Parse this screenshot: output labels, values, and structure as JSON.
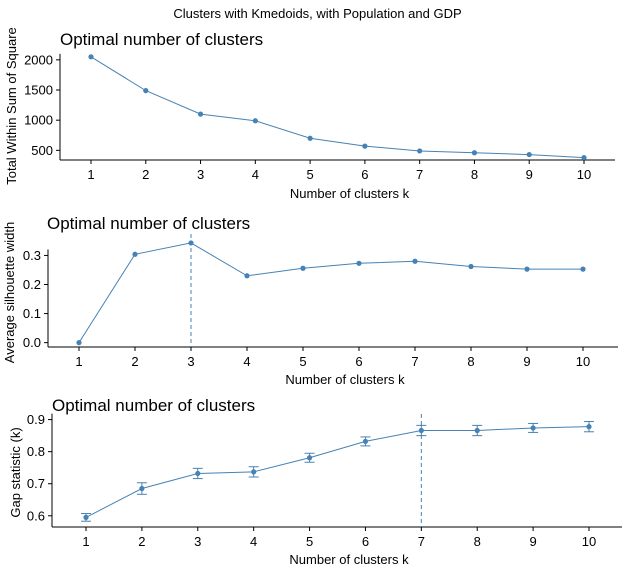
{
  "figure": {
    "title": "Clusters with Kmedoids, with Population and GDP"
  },
  "colors": {
    "line": "#4682b4",
    "axis": "#000000"
  },
  "chart_data": [
    {
      "type": "line",
      "title": "Optimal number of clusters",
      "xlabel": "Number of clusters k",
      "ylabel": "Total Within Sum of Square",
      "x": [
        1,
        2,
        3,
        4,
        5,
        6,
        7,
        8,
        9,
        10
      ],
      "x_tick_labels": [
        "1",
        "2",
        "3",
        "4",
        "5",
        "6",
        "7",
        "8",
        "9",
        "10"
      ],
      "y": [
        2050,
        1490,
        1100,
        990,
        700,
        570,
        490,
        460,
        430,
        380
      ],
      "ylim": [
        340,
        2130
      ],
      "y_ticks": [
        500,
        1000,
        1500,
        2000
      ],
      "grid": false
    },
    {
      "type": "line",
      "title": "Optimal number of clusters",
      "xlabel": "Number of clusters k",
      "ylabel": "Average silhouette width",
      "x": [
        1,
        2,
        3,
        4,
        5,
        6,
        7,
        8,
        9,
        10
      ],
      "x_tick_labels": [
        "1",
        "2",
        "3",
        "4",
        "5",
        "6",
        "7",
        "8",
        "9",
        "10"
      ],
      "y": [
        0.0,
        0.304,
        0.343,
        0.23,
        0.256,
        0.273,
        0.28,
        0.262,
        0.253,
        0.253
      ],
      "ylim": [
        -0.015,
        0.36
      ],
      "y_ticks": [
        0.0,
        0.1,
        0.2,
        0.3
      ],
      "y_tick_labels": [
        "0.0",
        "0.1",
        "0.2",
        "0.3"
      ],
      "optimal_k": 3,
      "grid": false
    },
    {
      "type": "line",
      "title": "Optimal number of clusters",
      "xlabel": "Number of clusters k",
      "ylabel": "Gap statistic (k)",
      "x": [
        1,
        2,
        3,
        4,
        5,
        6,
        7,
        8,
        9,
        10
      ],
      "x_tick_labels": [
        "1",
        "2",
        "3",
        "4",
        "5",
        "6",
        "7",
        "8",
        "9",
        "10"
      ],
      "y": [
        0.595,
        0.685,
        0.732,
        0.737,
        0.781,
        0.832,
        0.866,
        0.866,
        0.874,
        0.878
      ],
      "error": [
        0.012,
        0.018,
        0.016,
        0.016,
        0.014,
        0.014,
        0.016,
        0.016,
        0.014,
        0.016
      ],
      "ylim": [
        0.565,
        0.905
      ],
      "y_ticks": [
        0.6,
        0.7,
        0.8,
        0.9
      ],
      "y_tick_labels": [
        "0.6",
        "0.7",
        "0.8",
        "0.9"
      ],
      "optimal_k": 7,
      "grid": false
    }
  ]
}
